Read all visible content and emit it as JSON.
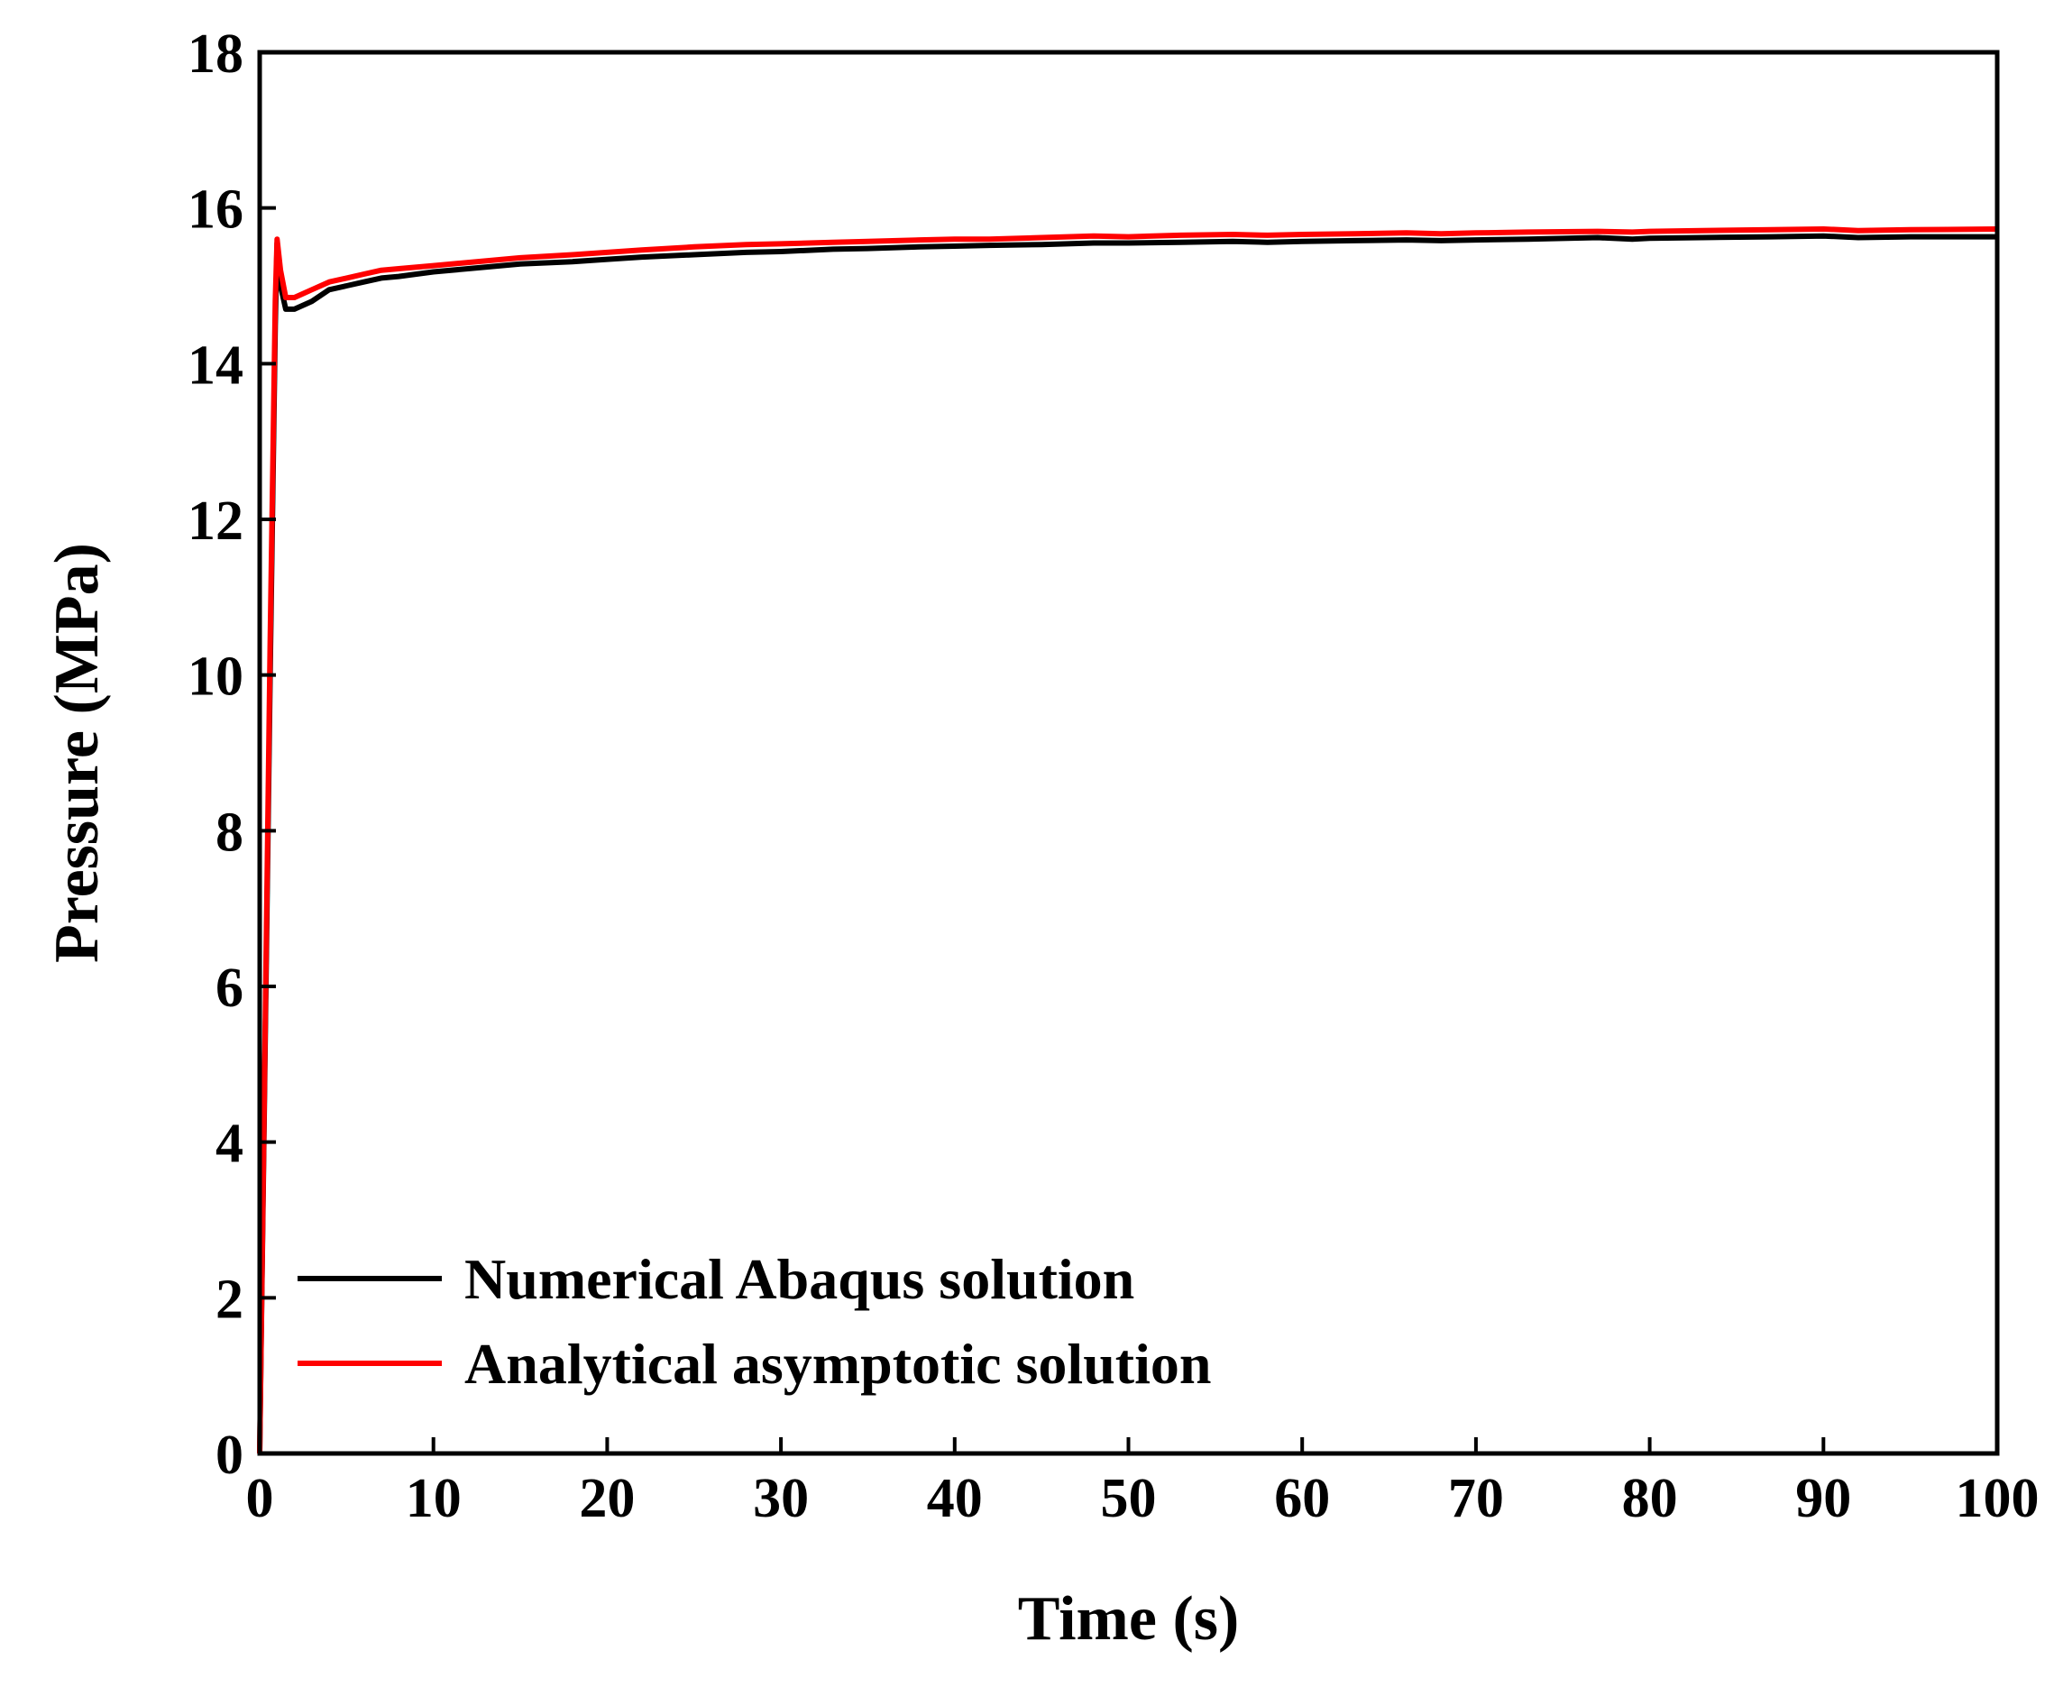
{
  "chart_data": {
    "type": "line",
    "title": "",
    "xlabel": "Time (s)",
    "ylabel": "Pressure (MPa)",
    "xlim": [
      0,
      100
    ],
    "ylim": [
      0,
      18
    ],
    "xticks": [
      0,
      10,
      20,
      30,
      40,
      50,
      60,
      70,
      80,
      90,
      100
    ],
    "yticks": [
      0,
      2,
      4,
      6,
      8,
      10,
      12,
      14,
      16,
      18
    ],
    "grid": false,
    "legend_position": "bottom-left",
    "series": [
      {
        "name": "Numerical Abaqus solution",
        "color": "#000000",
        "x": [
          0,
          0.3,
          0.6,
          0.9,
          1.0,
          1.2,
          1.5,
          2,
          3,
          4,
          5,
          6,
          7,
          8,
          10,
          12,
          15,
          18,
          20,
          22,
          25,
          28,
          30,
          33,
          35,
          38,
          40,
          42,
          45,
          48,
          50,
          53,
          56,
          58,
          60,
          63,
          66,
          68,
          70,
          73,
          77,
          79,
          80,
          83,
          87,
          90,
          92,
          95,
          100
        ],
        "y": [
          0,
          5,
          10,
          14.5,
          15.55,
          15.0,
          14.7,
          14.7,
          14.8,
          14.95,
          15.0,
          15.05,
          15.1,
          15.12,
          15.18,
          15.22,
          15.28,
          15.31,
          15.34,
          15.37,
          15.4,
          15.43,
          15.44,
          15.47,
          15.48,
          15.5,
          15.51,
          15.52,
          15.53,
          15.55,
          15.55,
          15.56,
          15.57,
          15.56,
          15.57,
          15.58,
          15.59,
          15.58,
          15.59,
          15.6,
          15.62,
          15.6,
          15.61,
          15.62,
          15.63,
          15.64,
          15.62,
          15.63,
          15.63
        ]
      },
      {
        "name": "Analytical asymptotic solution",
        "color": "#ff0000",
        "x": [
          0,
          0.3,
          0.6,
          0.9,
          1.0,
          1.2,
          1.5,
          2,
          3,
          4,
          5,
          6,
          7,
          8,
          10,
          12,
          15,
          18,
          20,
          22,
          25,
          28,
          30,
          33,
          35,
          38,
          40,
          42,
          45,
          48,
          50,
          53,
          56,
          58,
          60,
          63,
          66,
          68,
          70,
          73,
          77,
          79,
          80,
          83,
          87,
          90,
          92,
          95,
          100
        ],
        "y": [
          0,
          5.2,
          10.4,
          14.8,
          15.6,
          15.2,
          14.85,
          14.85,
          14.95,
          15.05,
          15.1,
          15.15,
          15.2,
          15.22,
          15.26,
          15.3,
          15.36,
          15.4,
          15.43,
          15.46,
          15.5,
          15.53,
          15.54,
          15.56,
          15.57,
          15.59,
          15.6,
          15.6,
          15.62,
          15.64,
          15.63,
          15.65,
          15.66,
          15.65,
          15.66,
          15.67,
          15.68,
          15.67,
          15.68,
          15.69,
          15.7,
          15.69,
          15.7,
          15.71,
          15.72,
          15.73,
          15.71,
          15.72,
          15.73
        ]
      }
    ]
  }
}
